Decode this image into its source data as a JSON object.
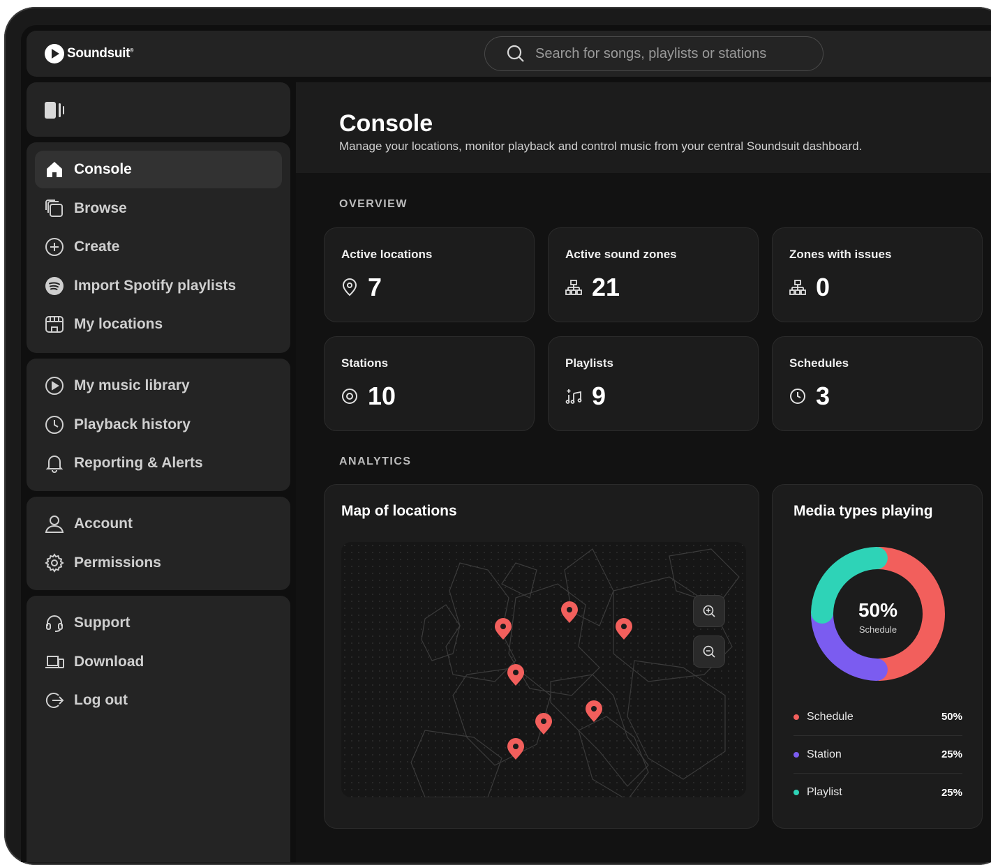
{
  "brand": {
    "name": "Soundsuit",
    "mark": "®"
  },
  "search": {
    "placeholder": "Search for songs, playlists or stations"
  },
  "sidebar": {
    "groups": [
      {
        "items": [
          {
            "label": "Console",
            "icon": "home-icon",
            "active": true
          },
          {
            "label": "Browse",
            "icon": "browse-icon"
          },
          {
            "label": "Create",
            "icon": "plus-circle-icon"
          },
          {
            "label": "Import Spotify playlists",
            "icon": "spotify-icon"
          },
          {
            "label": "My locations",
            "icon": "store-icon"
          }
        ]
      },
      {
        "items": [
          {
            "label": "My music library",
            "icon": "play-circle-icon"
          },
          {
            "label": "Playback history",
            "icon": "clock-icon"
          },
          {
            "label": "Reporting & Alerts",
            "icon": "bell-icon"
          }
        ]
      },
      {
        "items": [
          {
            "label": "Account",
            "icon": "user-icon"
          },
          {
            "label": "Permissions",
            "icon": "gear-icon"
          }
        ]
      },
      {
        "items": [
          {
            "label": "Support",
            "icon": "headset-icon"
          },
          {
            "label": "Download",
            "icon": "devices-icon"
          },
          {
            "label": "Log out",
            "icon": "logout-icon"
          }
        ]
      }
    ]
  },
  "header": {
    "title": "Console",
    "subtitle": "Manage your locations, monitor playback and control music from your central Soundsuit dashboard."
  },
  "overview": {
    "label": "OVERVIEW",
    "cards": [
      {
        "title": "Active locations",
        "value": "7",
        "icon": "location-pin-icon"
      },
      {
        "title": "Active sound zones",
        "value": "21",
        "icon": "zones-icon"
      },
      {
        "title": "Zones with issues",
        "value": "0",
        "icon": "zones-icon"
      },
      {
        "title": "Stations",
        "value": "10",
        "icon": "station-icon"
      },
      {
        "title": "Playlists",
        "value": "9",
        "icon": "playlist-icon"
      },
      {
        "title": "Schedules",
        "value": "3",
        "icon": "clock-icon"
      }
    ]
  },
  "analytics": {
    "label": "ANALYTICS",
    "map": {
      "title": "Map of locations",
      "pin_count": 7
    },
    "media": {
      "title": "Media types playing",
      "center_value": "50%",
      "center_label": "Schedule",
      "colors": {
        "Schedule": "#f25f5c",
        "Station": "#7b5cf0",
        "Playlist": "#2ed3b7"
      },
      "legend": [
        {
          "name": "Schedule",
          "value": "50%"
        },
        {
          "name": "Station",
          "value": "25%"
        },
        {
          "name": "Playlist",
          "value": "25%"
        }
      ]
    }
  }
}
